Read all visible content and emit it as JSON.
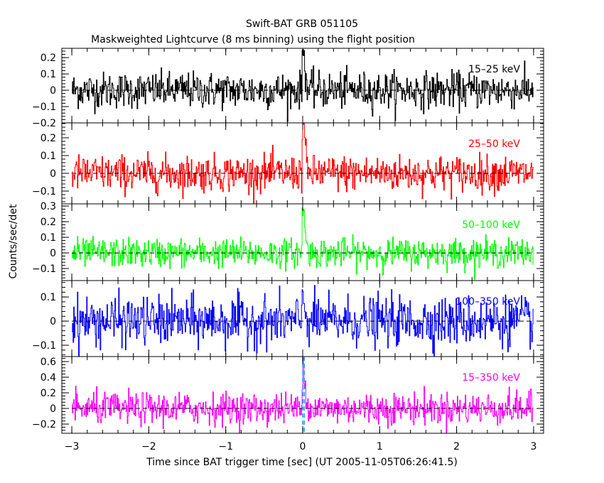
{
  "chart_data": {
    "type": "line",
    "title": "Swift-BAT GRB 051105",
    "subtitle": "Maskweighted Lightcurve (8 ms binning) using the flight position",
    "xlabel": "Time since BAT trigger time [sec] (UT 2005-11-05T06:26:41.5)",
    "ylabel": "Counts/sec/det",
    "xlim": [
      -3.13,
      3.13
    ],
    "x_ticks": [
      -3,
      -2,
      -1,
      0,
      1,
      2,
      3
    ],
    "x_tick_labels": [
      "−3",
      "−2",
      "−1",
      "0",
      "1",
      "2",
      "3"
    ],
    "bin_width_sec": 0.008,
    "x_range_data": [
      -3,
      3
    ],
    "trigger_markers": [
      0,
      0.02
    ],
    "panels": [
      {
        "name": "15-25 keV",
        "label": "15–25 keV",
        "color": "#000000",
        "ylim": [
          -0.2,
          0.257
        ],
        "ticks": [
          -0.2,
          -0.1,
          0,
          0.1,
          0.2
        ],
        "tick_labels": [
          "−0.2",
          "−0.1",
          "0",
          "0.1",
          "0.2"
        ],
        "noise_sd": 0.055,
        "burst_peak": 0.25
      },
      {
        "name": "25-50 keV",
        "label": "25–50 keV",
        "color": "#ff0000",
        "ylim": [
          -0.172,
          0.284
        ],
        "ticks": [
          -0.1,
          0,
          0.1,
          0.2
        ],
        "tick_labels": [
          "−0.1",
          "0",
          "0.1",
          "0.2"
        ],
        "noise_sd": 0.05,
        "burst_peak": 0.28
      },
      {
        "name": "50-100 keV",
        "label": "50–100 keV",
        "color": "#00ff00",
        "ylim": [
          -0.177,
          0.314
        ],
        "ticks": [
          -0.1,
          0,
          0.1,
          0.2,
          0.3
        ],
        "tick_labels": [
          "−0.1",
          "0",
          "0.1",
          "0.2",
          "0.3"
        ],
        "noise_sd": 0.045,
        "burst_peak": 0.3
      },
      {
        "name": "100-350 keV",
        "label": "100–350 keV",
        "color": "#0000ff",
        "ylim": [
          -0.147,
          0.168
        ],
        "ticks": [
          -0.1,
          0,
          0.1
        ],
        "tick_labels": [
          "−0.1",
          "0",
          "0.1"
        ],
        "noise_sd": 0.05,
        "burst_peak": 0.1
      },
      {
        "name": "15-350 keV",
        "label": "15–350 keV",
        "color": "#ff00ff",
        "ylim": [
          -0.318,
          0.664
        ],
        "ticks": [
          -0.2,
          0,
          0.2,
          0.4,
          0.6
        ],
        "tick_labels": [
          "−0.2",
          "0",
          "0.2",
          "0.4",
          "0.6"
        ],
        "noise_sd": 0.1,
        "burst_peak": 0.62
      }
    ]
  }
}
